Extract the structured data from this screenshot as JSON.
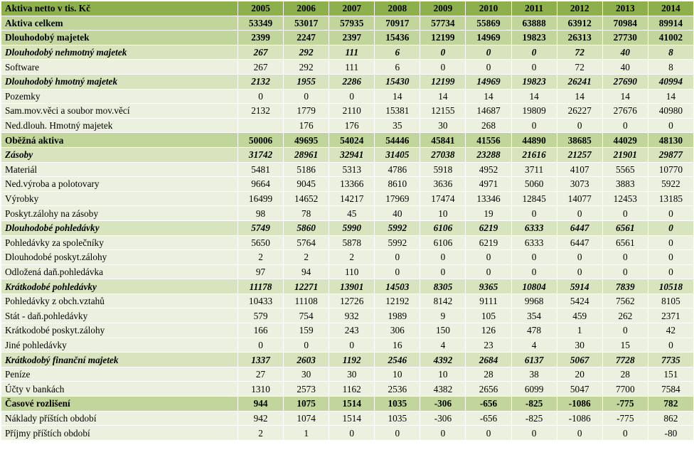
{
  "table": {
    "header_label": "Aktiva netto v tis. Kč",
    "years": [
      "2005",
      "2006",
      "2007",
      "2008",
      "2009",
      "2010",
      "2011",
      "2012",
      "2013",
      "2014"
    ],
    "rows": [
      {
        "label": "Aktiva celkem",
        "style": "lvl0",
        "values": [
          "53349",
          "53017",
          "57935",
          "70917",
          "57734",
          "55869",
          "63888",
          "63912",
          "70984",
          "89914"
        ]
      },
      {
        "label": "Dlouhodobý majetek",
        "style": "lvl0",
        "values": [
          "2399",
          "2247",
          "2397",
          "15436",
          "12199",
          "14969",
          "19823",
          "26313",
          "27730",
          "41002"
        ]
      },
      {
        "label": "Dlouhodobý nehmotný majetek",
        "style": "lvl1",
        "values": [
          "267",
          "292",
          "111",
          "6",
          "0",
          "0",
          "0",
          "72",
          "40",
          "8"
        ]
      },
      {
        "label": "Software",
        "style": "lvl2",
        "values": [
          "267",
          "292",
          "111",
          "6",
          "0",
          "0",
          "0",
          "72",
          "40",
          "8"
        ]
      },
      {
        "label": "Dlouhodobý hmotný majetek",
        "style": "lvl1",
        "values": [
          "2132",
          "1955",
          "2286",
          "15430",
          "12199",
          "14969",
          "19823",
          "26241",
          "27690",
          "40994"
        ]
      },
      {
        "label": "Pozemky",
        "style": "lvl2",
        "values": [
          "0",
          "0",
          "0",
          "14",
          "14",
          "14",
          "14",
          "14",
          "14",
          "14"
        ]
      },
      {
        "label": "Sam.mov.věci a soubor mov.věcí",
        "style": "lvl2",
        "values": [
          "2132",
          "1779",
          "2110",
          "15381",
          "12155",
          "14687",
          "19809",
          "26227",
          "27676",
          "40980"
        ]
      },
      {
        "label": "Ned.dlouh. Hmotný majetek",
        "style": "lvl2",
        "values": [
          "",
          "176",
          "176",
          "35",
          "30",
          "268",
          "0",
          "0",
          "0",
          "0"
        ]
      },
      {
        "label": "Oběžná aktiva",
        "style": "lvl0",
        "values": [
          "50006",
          "49695",
          "54024",
          "54446",
          "45841",
          "41556",
          "44890",
          "38685",
          "44029",
          "48130"
        ]
      },
      {
        "label": "Zásoby",
        "style": "lvl1",
        "values": [
          "31742",
          "28961",
          "32941",
          "31405",
          "27038",
          "23288",
          "21616",
          "21257",
          "21901",
          "29877"
        ]
      },
      {
        "label": "Materiál",
        "style": "lvl2",
        "values": [
          "5481",
          "5186",
          "5313",
          "4786",
          "5918",
          "4952",
          "3711",
          "4107",
          "5565",
          "10770"
        ]
      },
      {
        "label": "Ned.výroba a polotovary",
        "style": "lvl2",
        "values": [
          "9664",
          "9045",
          "13366",
          "8610",
          "3636",
          "4971",
          "5060",
          "3073",
          "3883",
          "5922"
        ]
      },
      {
        "label": "Výrobky",
        "style": "lvl2",
        "values": [
          "16499",
          "14652",
          "14217",
          "17969",
          "17474",
          "13346",
          "12845",
          "14077",
          "12453",
          "13185"
        ]
      },
      {
        "label": "Poskyt.zálohy na zásoby",
        "style": "lvl2",
        "values": [
          "98",
          "78",
          "45",
          "40",
          "10",
          "19",
          "0",
          "0",
          "0",
          "0"
        ]
      },
      {
        "label": "Dlouhodobé pohledávky",
        "style": "lvl1",
        "values": [
          "5749",
          "5860",
          "5990",
          "5992",
          "6106",
          "6219",
          "6333",
          "6447",
          "6561",
          "0"
        ]
      },
      {
        "label": "Pohledávky za společníky",
        "style": "lvl2",
        "values": [
          "5650",
          "5764",
          "5878",
          "5992",
          "6106",
          "6219",
          "6333",
          "6447",
          "6561",
          "0"
        ]
      },
      {
        "label": "Dlouhodobé poskyt.zálohy",
        "style": "lvl2",
        "values": [
          "2",
          "2",
          "2",
          "0",
          "0",
          "0",
          "0",
          "0",
          "0",
          "0"
        ]
      },
      {
        "label": "Odložená daň.pohledávka",
        "style": "lvl2",
        "values": [
          "97",
          "94",
          "110",
          "0",
          "0",
          "0",
          "0",
          "0",
          "0",
          "0"
        ]
      },
      {
        "label": "Krátkodobé pohledávky",
        "style": "lvl1",
        "values": [
          "11178",
          "12271",
          "13901",
          "14503",
          "8305",
          "9365",
          "10804",
          "5914",
          "7839",
          "10518"
        ]
      },
      {
        "label": "Pohledávky z obch.vztahů",
        "style": "lvl2",
        "values": [
          "10433",
          "11108",
          "12726",
          "12192",
          "8142",
          "9111",
          "9968",
          "5424",
          "7562",
          "8105"
        ]
      },
      {
        "label": "Stát - daň.pohledávky",
        "style": "lvl2",
        "values": [
          "579",
          "754",
          "932",
          "1989",
          "9",
          "105",
          "354",
          "459",
          "262",
          "2371"
        ]
      },
      {
        "label": "Krátkodobé poskyt.zálohy",
        "style": "lvl2",
        "values": [
          "166",
          "159",
          "243",
          "306",
          "150",
          "126",
          "478",
          "1",
          "0",
          "42"
        ]
      },
      {
        "label": "Jiné pohledávky",
        "style": "lvl2",
        "values": [
          "0",
          "0",
          "0",
          "16",
          "4",
          "23",
          "4",
          "30",
          "15",
          "0"
        ]
      },
      {
        "label": "Krátkodobý finanční majetek",
        "style": "lvl1",
        "values": [
          "1337",
          "2603",
          "1192",
          "2546",
          "4392",
          "2684",
          "6137",
          "5067",
          "7728",
          "7735"
        ]
      },
      {
        "label": "Peníze",
        "style": "lvl2",
        "values": [
          "27",
          "30",
          "30",
          "10",
          "10",
          "28",
          "38",
          "20",
          "28",
          "151"
        ]
      },
      {
        "label": "Účty v bankách",
        "style": "lvl2",
        "values": [
          "1310",
          "2573",
          "1162",
          "2536",
          "4382",
          "2656",
          "6099",
          "5047",
          "7700",
          "7584"
        ]
      },
      {
        "label": "Časové rozlišení",
        "style": "lvl0",
        "values": [
          "944",
          "1075",
          "1514",
          "1035",
          "-306",
          "-656",
          "-825",
          "-1086",
          "-775",
          "782"
        ]
      },
      {
        "label": "Náklady příštích období",
        "style": "lvl2",
        "values": [
          "942",
          "1074",
          "1514",
          "1035",
          "-306",
          "-656",
          "-825",
          "-1086",
          "-775",
          "862"
        ]
      },
      {
        "label": "Příjmy příštích období",
        "style": "lvl2",
        "values": [
          "2",
          "1",
          "0",
          "0",
          "0",
          "0",
          "0",
          "0",
          "0",
          "-80"
        ]
      }
    ]
  },
  "colors": {
    "header_bg": "#8db04c",
    "level0_bg": "#c2d69b",
    "level1_bg": "#d7e4bd",
    "level2_bg": "#ebf1de",
    "border": "#ffffff"
  }
}
